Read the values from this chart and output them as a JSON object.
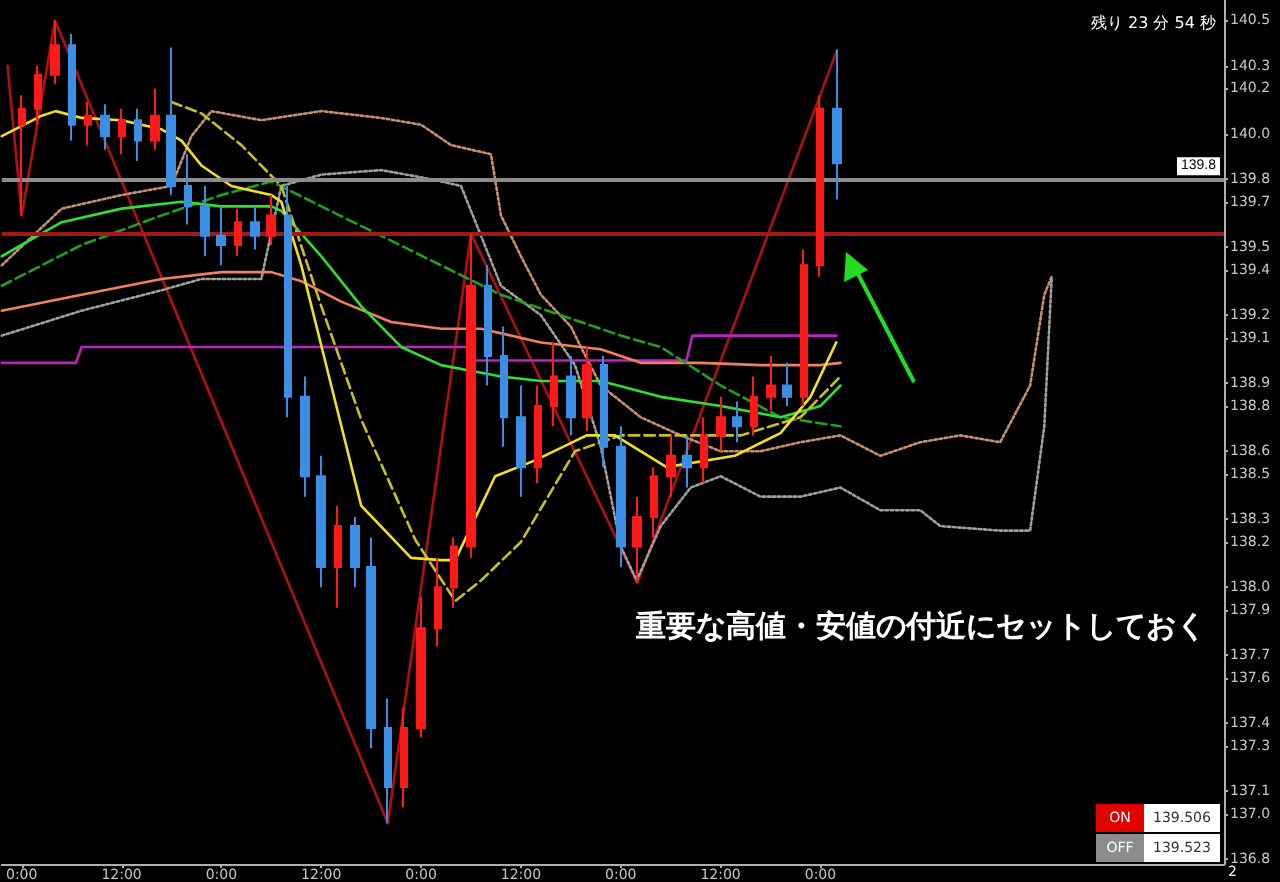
{
  "chart_data": {
    "type": "candlestick",
    "xlim": [
      "2000-01-02T21:36",
      "2000-01-09T00:30"
    ],
    "ylim": [
      136.78,
      140.59
    ],
    "xticks": [
      {
        "value": "2000-01-03T00:00",
        "label": "0:00"
      },
      {
        "value": "2000-01-03T12:00",
        "label": "12:00"
      },
      {
        "value": "2000-01-04T00:00",
        "label": "0:00"
      },
      {
        "value": "2000-01-04T12:00",
        "label": "12:00"
      },
      {
        "value": "2000-01-05T00:00",
        "label": "0:00"
      },
      {
        "value": "2000-01-05T12:00",
        "label": "12:00"
      },
      {
        "value": "2000-01-06T00:00",
        "label": "0:00"
      },
      {
        "value": "2000-01-06T12:00",
        "label": "12:00"
      },
      {
        "value": "2000-01-07T00:00",
        "label": "0:00"
      }
    ],
    "yticks": [
      {
        "value": 136.8,
        "label": "136.8"
      },
      {
        "value": 137.0,
        "label": "137.0"
      },
      {
        "value": 137.1,
        "label": "137.1"
      },
      {
        "value": 137.3,
        "label": "137.3"
      },
      {
        "value": 137.4,
        "label": "137.4"
      },
      {
        "value": 137.6,
        "label": "137.6"
      },
      {
        "value": 137.7,
        "label": "137.7"
      },
      {
        "value": 137.9,
        "label": "137.9"
      },
      {
        "value": 138.0,
        "label": "138.0"
      },
      {
        "value": 138.2,
        "label": "138.2"
      },
      {
        "value": 138.3,
        "label": "138.3"
      },
      {
        "value": 138.5,
        "label": "138.5"
      },
      {
        "value": 138.6,
        "label": "138.6"
      },
      {
        "value": 138.8,
        "label": "138.8"
      },
      {
        "value": 138.9,
        "label": "138.9"
      },
      {
        "value": 139.1,
        "label": "139.1"
      },
      {
        "value": 139.2,
        "label": "139.2"
      },
      {
        "value": 139.4,
        "label": "139.4"
      },
      {
        "value": 139.5,
        "label": "139.5"
      },
      {
        "value": 139.7,
        "label": "139.7"
      },
      {
        "value": 139.8,
        "label": "139.8"
      },
      {
        "value": 140.0,
        "label": "140.0"
      },
      {
        "value": 140.2,
        "label": "140.2"
      },
      {
        "value": 140.3,
        "label": "140.3"
      },
      {
        "value": 140.5,
        "label": "140.5"
      }
    ],
    "ref_lines": [
      {
        "axis": "y",
        "value": 139.56,
        "color": "#a01818",
        "line_style": "solid"
      },
      {
        "axis": "y",
        "value": 139.8,
        "label": "139.8",
        "color": "#8c8c8c",
        "line_style": "solid"
      }
    ],
    "annotations": [
      "重要な高値・安値の付近にセットしておく",
      "残り 23 分 54 秒",
      "ON",
      "139.506",
      "OFF",
      "139.523",
      "2"
    ],
    "series": [
      {
        "type": "line",
        "color": "#b01010",
        "line_style": "solid",
        "x": [
          "2000-01-02T22:18",
          "2000-01-03T00:00",
          "2000-01-03T04:00",
          "2000-01-04T20:00",
          "2000-01-05T06:00",
          "2000-01-06T02:00",
          "2000-01-07T02:00"
        ],
        "values": [
          140.3,
          139.64,
          140.5,
          136.96,
          139.56,
          138.02,
          140.37
        ]
      },
      {
        "type": "line",
        "color": "#c89070",
        "line_style": "dotted",
        "x": [
          "2000-01-02T21:36",
          "2000-01-03T04:48",
          "2000-01-03T12:00",
          "2000-01-03T18:00",
          "2000-01-03T20:24",
          "2000-01-03T22:48",
          "2000-01-04T04:48",
          "2000-01-04T12:00",
          "2000-01-04T19:12",
          "2000-01-05T00:00",
          "2000-01-05T03:36",
          "2000-01-05T08:24",
          "2000-01-05T09:36",
          "2000-01-05T12:00",
          "2000-01-05T14:24",
          "2000-01-05T18:00",
          "2000-01-05T19:12",
          "2000-01-05T21:36",
          "2000-01-06T02:24",
          "2000-01-06T07:12",
          "2000-01-06T12:00",
          "2000-01-06T16:48",
          "2000-01-06T21:36",
          "2000-01-07T02:24",
          "2000-01-07T07:12",
          "2000-01-07T12:00",
          "2000-01-07T16:48",
          "2000-01-07T21:36",
          "2000-01-08T01:12",
          "2000-01-08T02:54",
          "2000-01-08T03:48"
        ],
        "values": [
          139.42,
          139.67,
          139.73,
          139.77,
          139.99,
          140.1,
          140.06,
          140.1,
          140.07,
          140.04,
          139.95,
          139.91,
          139.64,
          139.46,
          139.29,
          139.15,
          139.06,
          138.89,
          138.75,
          138.67,
          138.6,
          138.6,
          138.64,
          138.67,
          138.58,
          138.64,
          138.67,
          138.64,
          138.89,
          139.29,
          139.37
        ]
      },
      {
        "type": "line",
        "color": "#a0a0a0",
        "line_style": "dotted",
        "x": [
          "2000-01-02T21:36",
          "2000-01-03T07:12",
          "2000-01-03T16:48",
          "2000-01-03T21:36",
          "2000-01-04T04:48",
          "2000-01-04T07:12",
          "2000-01-04T12:00",
          "2000-01-04T19:12",
          "2000-01-05T01:12",
          "2000-01-05T04:48",
          "2000-01-05T09:36",
          "2000-01-05T14:24",
          "2000-01-05T18:30",
          "2000-01-05T21:36",
          "2000-01-06T00:00",
          "2000-01-06T01:54",
          "2000-01-06T04:48",
          "2000-01-06T08:24",
          "2000-01-06T12:00",
          "2000-01-06T16:48",
          "2000-01-06T21:36",
          "2000-01-07T02:24",
          "2000-01-07T07:12",
          "2000-01-07T12:00",
          "2000-01-07T14:24",
          "2000-01-07T21:36",
          "2000-01-08T01:12",
          "2000-01-08T02:54",
          "2000-01-08T03:48"
        ],
        "values": [
          139.11,
          139.22,
          139.31,
          139.36,
          139.36,
          139.77,
          139.82,
          139.84,
          139.8,
          139.77,
          139.33,
          139.2,
          138.98,
          138.62,
          138.18,
          138.03,
          138.27,
          138.44,
          138.49,
          138.4,
          138.4,
          138.44,
          138.34,
          138.34,
          138.27,
          138.25,
          138.25,
          138.71,
          139.37
        ]
      },
      {
        "type": "line",
        "color": "#c020c0",
        "line_style": "solid",
        "x": [
          "2000-01-02T21:36",
          "2000-01-03T06:30",
          "2000-01-03T07:12",
          "2000-01-05T05:30",
          "2000-01-05T06:12",
          "2000-01-06T07:54",
          "2000-01-06T08:36",
          "2000-01-07T01:54"
        ],
        "values": [
          138.99,
          138.99,
          139.06,
          139.06,
          139.0,
          139.0,
          139.11,
          139.11
        ]
      },
      {
        "type": "line",
        "color": "#f08060",
        "line_style": "solid",
        "x": [
          "2000-01-02T21:36",
          "2000-01-03T07:12",
          "2000-01-03T16:48",
          "2000-01-04T00:00",
          "2000-01-04T06:00",
          "2000-01-04T09:36",
          "2000-01-04T14:24",
          "2000-01-04T20:24",
          "2000-01-05T02:24",
          "2000-01-05T07:12",
          "2000-01-05T14:24",
          "2000-01-05T21:36",
          "2000-01-06T02:24",
          "2000-01-06T09:36",
          "2000-01-06T16:48",
          "2000-01-07T00:00",
          "2000-01-07T02:24"
        ],
        "values": [
          139.22,
          139.29,
          139.36,
          139.39,
          139.39,
          139.35,
          139.26,
          139.17,
          139.14,
          139.14,
          139.08,
          139.05,
          138.99,
          138.99,
          138.98,
          138.98,
          138.99
        ]
      },
      {
        "type": "line",
        "color": "#20a020",
        "line_style": "dashed",
        "x": [
          "2000-01-02T21:36",
          "2000-01-03T07:12",
          "2000-01-03T16:48",
          "2000-01-04T00:00",
          "2000-01-04T06:00",
          "2000-01-04T12:00",
          "2000-01-04T19:12",
          "2000-01-05T02:24",
          "2000-01-05T09:36",
          "2000-01-05T16:48",
          "2000-01-06T00:00",
          "2000-01-06T04:48",
          "2000-01-06T12:00",
          "2000-01-06T19:12",
          "2000-01-07T02:24"
        ],
        "values": [
          139.33,
          139.51,
          139.64,
          139.73,
          139.79,
          139.68,
          139.55,
          139.42,
          139.29,
          139.2,
          139.11,
          139.06,
          138.89,
          138.75,
          138.71
        ]
      },
      {
        "type": "line",
        "color": "#30e030",
        "line_style": "solid",
        "x": [
          "2000-01-02T21:36",
          "2000-01-03T04:48",
          "2000-01-03T12:00",
          "2000-01-03T19:12",
          "2000-01-04T00:00",
          "2000-01-04T06:00",
          "2000-01-04T07:12",
          "2000-01-04T12:00",
          "2000-01-04T16:48",
          "2000-01-04T21:36",
          "2000-01-05T02:24",
          "2000-01-05T09:36",
          "2000-01-05T14:24",
          "2000-01-05T21:36",
          "2000-01-06T04:48",
          "2000-01-06T12:00",
          "2000-01-06T19:12",
          "2000-01-07T00:00",
          "2000-01-07T02:24"
        ],
        "values": [
          139.46,
          139.61,
          139.67,
          139.7,
          139.68,
          139.68,
          139.66,
          139.46,
          139.24,
          139.06,
          138.98,
          138.93,
          138.91,
          138.91,
          138.84,
          138.8,
          138.75,
          138.8,
          138.89
        ]
      },
      {
        "type": "line",
        "color": "#c8c020",
        "line_style": "dashed",
        "x": [
          "2000-01-03T18:00",
          "2000-01-03T21:36",
          "2000-01-04T02:24",
          "2000-01-04T07:12",
          "2000-01-04T12:00",
          "2000-01-04T16:48",
          "2000-01-04T23:18",
          "2000-01-05T04:06",
          "2000-01-05T07:12",
          "2000-01-05T12:00",
          "2000-01-05T18:30",
          "2000-01-06T00:00",
          "2000-01-06T07:12",
          "2000-01-06T14:24",
          "2000-01-06T21:36",
          "2000-01-07T02:24"
        ],
        "values": [
          140.14,
          140.09,
          139.95,
          139.77,
          139.24,
          138.74,
          138.21,
          137.94,
          138.03,
          138.2,
          138.6,
          138.67,
          138.67,
          138.67,
          138.75,
          138.93
        ]
      },
      {
        "type": "line",
        "color": "#f0e020",
        "line_style": "solid",
        "x": [
          "2000-01-02T21:36",
          "2000-01-03T02:24",
          "2000-01-03T04:06",
          "2000-01-03T07:12",
          "2000-01-03T12:00",
          "2000-01-03T16:48",
          "2000-01-03T19:12",
          "2000-01-03T21:36",
          "2000-01-04T01:12",
          "2000-01-04T06:00",
          "2000-01-04T07:12",
          "2000-01-04T09:36",
          "2000-01-04T13:12",
          "2000-01-04T16:48",
          "2000-01-04T22:48",
          "2000-01-05T02:24",
          "2000-01-05T04:06",
          "2000-01-05T08:54",
          "2000-01-05T13:42",
          "2000-01-05T19:54",
          "2000-01-05T23:18",
          "2000-01-06T05:30",
          "2000-01-06T13:42",
          "2000-01-06T19:12",
          "2000-01-06T22:48",
          "2000-01-07T01:54"
        ],
        "values": [
          139.99,
          140.08,
          140.1,
          140.07,
          140.06,
          140.02,
          139.97,
          139.86,
          139.77,
          139.73,
          139.7,
          139.42,
          138.89,
          138.36,
          138.13,
          138.12,
          138.12,
          138.49,
          138.56,
          138.67,
          138.67,
          138.53,
          138.58,
          138.68,
          138.84,
          139.08
        ]
      },
      {
        "x": [
          "2000-01-03T00:00",
          "2000-01-03T02:00",
          "2000-01-03T04:00",
          "2000-01-03T06:00",
          "2000-01-03T08:00",
          "2000-01-03T10:00",
          "2000-01-03T12:00",
          "2000-01-03T14:00",
          "2000-01-03T16:00",
          "2000-01-03T18:00",
          "2000-01-03T20:00",
          "2000-01-03T22:00",
          "2000-01-04T00:00",
          "2000-01-04T02:00",
          "2000-01-04T04:00",
          "2000-01-04T06:00",
          "2000-01-04T08:00",
          "2000-01-04T10:00",
          "2000-01-04T12:00",
          "2000-01-04T14:00",
          "2000-01-04T16:00",
          "2000-01-04T18:00",
          "2000-01-04T20:00",
          "2000-01-04T22:00",
          "2000-01-05T00:00",
          "2000-01-05T02:00",
          "2000-01-05T04:00",
          "2000-01-05T06:00",
          "2000-01-05T08:00",
          "2000-01-05T10:00",
          "2000-01-05T12:00",
          "2000-01-05T14:00",
          "2000-01-05T16:00",
          "2000-01-05T18:00",
          "2000-01-05T20:00",
          "2000-01-05T22:00",
          "2000-01-06T00:00",
          "2000-01-06T02:00",
          "2000-01-06T04:00",
          "2000-01-06T06:00",
          "2000-01-06T08:00",
          "2000-01-06T10:00",
          "2000-01-06T12:00",
          "2000-01-06T14:00",
          "2000-01-06T16:00",
          "2000-01-06T18:00",
          "2000-01-06T20:00",
          "2000-01-06T22:00",
          "2000-01-07T00:00",
          "2000-01-07T02:00"
        ],
        "ohlc": [
          [
            140.04,
            140.17,
            139.64,
            140.11
          ],
          [
            140.11,
            140.3,
            140.04,
            140.26
          ],
          [
            140.26,
            140.5,
            140.22,
            140.39
          ],
          [
            140.39,
            140.44,
            139.97,
            140.04
          ],
          [
            140.04,
            140.14,
            139.95,
            140.08
          ],
          [
            140.08,
            140.13,
            139.93,
            139.99
          ],
          [
            139.99,
            140.11,
            139.91,
            140.06
          ],
          [
            140.06,
            140.11,
            139.88,
            139.97
          ],
          [
            139.97,
            140.2,
            139.93,
            140.08
          ],
          [
            140.08,
            140.38,
            139.73,
            139.77
          ],
          [
            139.77,
            139.91,
            139.6,
            139.68
          ],
          [
            139.68,
            139.77,
            139.46,
            139.55
          ],
          [
            139.55,
            139.68,
            139.42,
            139.51
          ],
          [
            139.51,
            139.67,
            139.46,
            139.61
          ],
          [
            139.61,
            139.68,
            139.49,
            139.55
          ],
          [
            139.55,
            139.73,
            139.51,
            139.64
          ],
          [
            139.64,
            139.77,
            138.75,
            138.84
          ],
          [
            138.84,
            138.93,
            138.4,
            138.49
          ],
          [
            138.49,
            138.58,
            138.0,
            138.09
          ],
          [
            138.09,
            138.36,
            137.91,
            138.27
          ],
          [
            138.27,
            138.31,
            138.0,
            138.09
          ],
          [
            138.09,
            138.22,
            137.29,
            137.38
          ],
          [
            137.38,
            137.51,
            136.96,
            137.12
          ],
          [
            137.12,
            137.47,
            137.03,
            137.38
          ],
          [
            137.38,
            137.96,
            137.34,
            137.82
          ],
          [
            137.82,
            138.13,
            137.74,
            138.0
          ],
          [
            138.0,
            138.22,
            137.91,
            138.18
          ],
          [
            138.18,
            139.56,
            138.13,
            139.33
          ],
          [
            139.33,
            139.42,
            138.89,
            139.02
          ],
          [
            139.02,
            139.15,
            138.62,
            138.75
          ],
          [
            138.75,
            138.89,
            138.4,
            138.53
          ],
          [
            138.53,
            138.89,
            138.46,
            138.8
          ],
          [
            138.8,
            139.08,
            138.71,
            138.93
          ],
          [
            138.93,
            139.02,
            138.67,
            138.75
          ],
          [
            138.75,
            139.06,
            138.69,
            138.98
          ],
          [
            138.98,
            139.02,
            138.53,
            138.62
          ],
          [
            138.62,
            138.71,
            138.09,
            138.18
          ],
          [
            138.18,
            138.4,
            138.02,
            138.31
          ],
          [
            138.31,
            138.53,
            138.22,
            138.49
          ],
          [
            138.49,
            138.67,
            138.4,
            138.58
          ],
          [
            138.58,
            138.67,
            138.44,
            138.53
          ],
          [
            138.53,
            138.75,
            138.46,
            138.67
          ],
          [
            138.67,
            138.84,
            138.6,
            138.75
          ],
          [
            138.75,
            138.82,
            138.64,
            138.71
          ],
          [
            138.71,
            138.93,
            138.67,
            138.84
          ],
          [
            138.84,
            139.02,
            138.78,
            138.89
          ],
          [
            138.89,
            138.99,
            138.8,
            138.84
          ],
          [
            138.84,
            139.49,
            138.8,
            139.42
          ],
          [
            139.42,
            140.17,
            139.37,
            140.11
          ],
          [
            140.11,
            140.37,
            139.71,
            139.87
          ]
        ],
        "colors": [
          "#ff1a1a",
          "#ff1a1a",
          "#ff1a1a",
          "#3a8ee6",
          "#ff1a1a",
          "#3a8ee6",
          "#ff1a1a",
          "#3a8ee6",
          "#ff1a1a",
          "#3a8ee6",
          "#3a8ee6",
          "#3a8ee6",
          "#3a8ee6",
          "#ff1a1a",
          "#3a8ee6",
          "#ff1a1a",
          "#3a8ee6",
          "#3a8ee6",
          "#3a8ee6",
          "#ff1a1a",
          "#3a8ee6",
          "#3a8ee6",
          "#3a8ee6",
          "#ff1a1a",
          "#ff1a1a",
          "#ff1a1a",
          "#ff1a1a",
          "#ff1a1a",
          "#3a8ee6",
          "#3a8ee6",
          "#3a8ee6",
          "#ff1a1a",
          "#ff1a1a",
          "#3a8ee6",
          "#ff1a1a",
          "#3a8ee6",
          "#3a8ee6",
          "#ff1a1a",
          "#ff1a1a",
          "#ff1a1a",
          "#3a8ee6",
          "#ff1a1a",
          "#ff1a1a",
          "#3a8ee6",
          "#ff1a1a",
          "#ff1a1a",
          "#3a8ee6",
          "#ff1a1a",
          "#ff1a1a",
          "#3a8ee6"
        ]
      }
    ]
  }
}
